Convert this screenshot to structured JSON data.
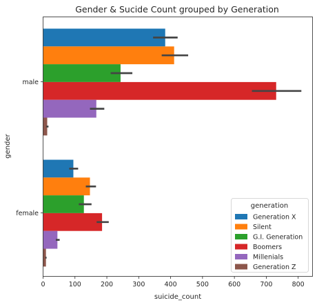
{
  "chart_data": {
    "type": "bar",
    "orientation": "horizontal",
    "title": "Gender & Sucide Count grouped by Generation",
    "xlabel": "suicide_count",
    "ylabel": "gender",
    "categories": [
      "male",
      "female"
    ],
    "xlim": [
      0,
      845
    ],
    "xticks": [
      0,
      100,
      200,
      300,
      400,
      500,
      600,
      700,
      800
    ],
    "grid": false,
    "legend": {
      "title": "generation",
      "placement": "lower-right"
    },
    "series": [
      {
        "name": "Generation X",
        "color": "#1f77b4",
        "values": [
          383,
          95
        ],
        "ci": [
          [
            345,
            422
          ],
          [
            82,
            110
          ]
        ]
      },
      {
        "name": "Silent",
        "color": "#ff7f0e",
        "values": [
          411,
          147
        ],
        "ci": [
          [
            372,
            455
          ],
          [
            134,
            166
          ]
        ]
      },
      {
        "name": "G.I. Generation",
        "color": "#2ca02c",
        "values": [
          243,
          128
        ],
        "ci": [
          [
            212,
            280
          ],
          [
            112,
            152
          ]
        ]
      },
      {
        "name": "Boomers",
        "color": "#d62728",
        "values": [
          731,
          185
        ],
        "ci": [
          [
            655,
            810
          ],
          [
            168,
            206
          ]
        ]
      },
      {
        "name": "Millenials",
        "color": "#9467bd",
        "values": [
          167,
          45
        ],
        "ci": [
          [
            147,
            192
          ],
          [
            40,
            52
          ]
        ]
      },
      {
        "name": "Generation Z",
        "color": "#8c564b",
        "values": [
          13,
          9
        ],
        "ci": [
          [
            10,
            17
          ],
          [
            7,
            11
          ]
        ]
      }
    ]
  }
}
